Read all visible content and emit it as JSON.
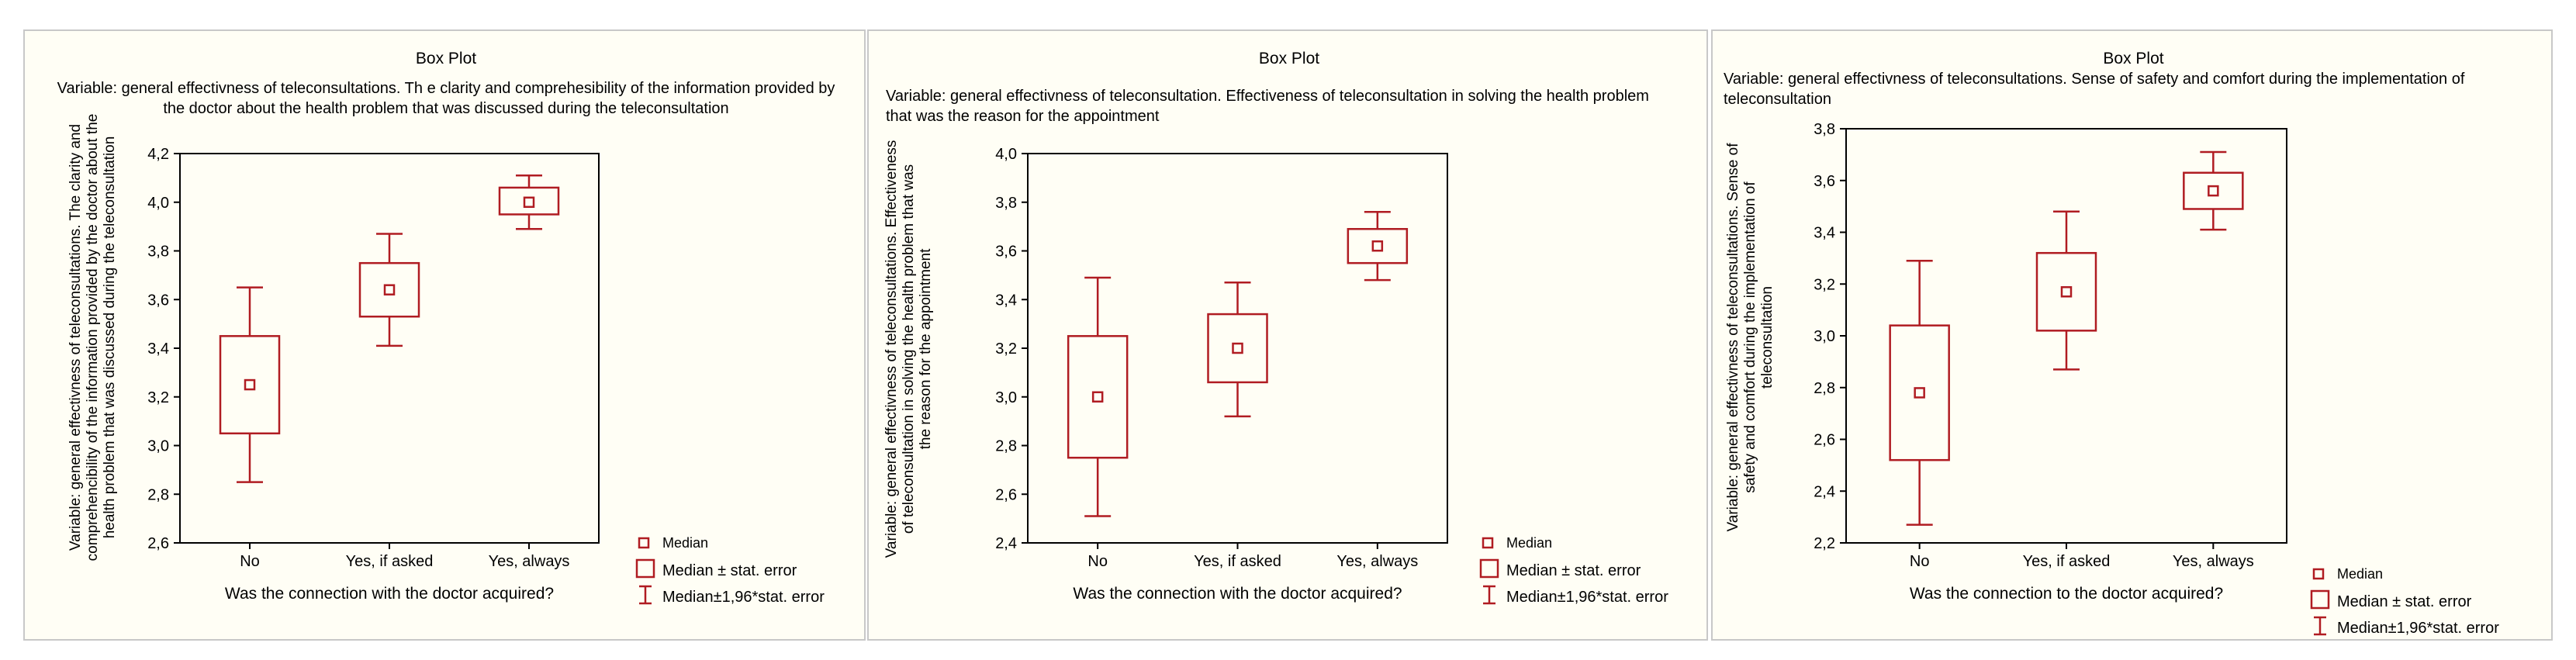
{
  "chart_data": [
    {
      "type": "boxplot",
      "title": "Box Plot",
      "subtitle": [
        "Variable: general effectivness of teleconsultations. Th e clarity and comprehesibility of the information provided by",
        "the doctor about the health problem that was discussed during the teleconsultation"
      ],
      "subtitle_align": "center",
      "xlabel": "Was the connection with the doctor acquired?",
      "ylabel": [
        "Variable: general effectivness of teleconsultations. The clarity and",
        "comprehencibility of the information provided by the doctor about the",
        "health problem that was discussed during the teleconsultation"
      ],
      "categories": [
        "No",
        "Yes, if asked",
        "Yes, always"
      ],
      "median": [
        3.25,
        3.64,
        4.0
      ],
      "box_low": [
        3.05,
        3.53,
        3.95
      ],
      "box_high": [
        3.45,
        3.75,
        4.06
      ],
      "whisker_low": [
        2.85,
        3.41,
        3.89
      ],
      "whisker_high": [
        3.65,
        3.87,
        4.11
      ],
      "ylim": [
        2.6,
        4.2
      ],
      "yticks": [
        "2,6",
        "2,8",
        "3,0",
        "3,2",
        "3,4",
        "3,6",
        "3,8",
        "4,0",
        "4,2"
      ],
      "legend": [
        "Median",
        "Median ± stat. error",
        "Median±1,96*stat. error"
      ],
      "legend_position": "bottom-right",
      "grid": false
    },
    {
      "type": "boxplot",
      "title": "Box Plot",
      "subtitle": [
        "Variable: general effectivness of teleconsultation. Effectiveness of teleconsultation in solving the health problem",
        "that was the reason for the appointment"
      ],
      "subtitle_align": "left",
      "xlabel": "Was the connection with the doctor acquired?",
      "ylabel": [
        "Variable: general effectivness of teleconsultations. Effectiveness",
        "of teleconsultation in solving the health problem that was",
        "the reason for the appointment"
      ],
      "categories": [
        "No",
        "Yes, if asked",
        "Yes, always"
      ],
      "median": [
        3.0,
        3.2,
        3.62
      ],
      "box_low": [
        2.75,
        3.06,
        3.55
      ],
      "box_high": [
        3.25,
        3.34,
        3.69
      ],
      "whisker_low": [
        2.51,
        2.92,
        3.48
      ],
      "whisker_high": [
        3.49,
        3.47,
        3.76
      ],
      "ylim": [
        2.4,
        4.0
      ],
      "yticks": [
        "2,4",
        "2,6",
        "2,8",
        "3,0",
        "3,2",
        "3,4",
        "3,6",
        "3,8",
        "4,0"
      ],
      "legend": [
        "Median",
        "Median ± stat. error",
        "Median±1,96*stat. error"
      ],
      "legend_position": "bottom-right",
      "grid": false
    },
    {
      "type": "boxplot",
      "title": "Box Plot",
      "subtitle": [
        "Variable: general effectivness of teleconsultations. Sense of safety and comfort during the implementation of",
        "teleconsultation"
      ],
      "subtitle_align": "left",
      "xlabel": "Was the connection to the doctor acquired?",
      "ylabel": [
        "Variable: general effectivness of teleconsultations. Sense of",
        "safety and comfort during the implementation of",
        "teleconsultation"
      ],
      "categories": [
        "No",
        "Yes, if asked",
        "Yes, always"
      ],
      "median": [
        2.78,
        3.17,
        3.56
      ],
      "box_low": [
        2.52,
        3.02,
        3.49
      ],
      "box_high": [
        3.04,
        3.32,
        3.63
      ],
      "whisker_low": [
        2.27,
        2.87,
        3.41
      ],
      "whisker_high": [
        3.29,
        3.48,
        3.71
      ],
      "ylim": [
        2.2,
        3.8
      ],
      "yticks": [
        "2,2",
        "2,4",
        "2,6",
        "2,8",
        "3,0",
        "3,2",
        "3,4",
        "3,6",
        "3,8"
      ],
      "legend": [
        "Median",
        "Median ± stat. error",
        "Median±1,96*stat. error"
      ],
      "legend_position": "bottom-right",
      "grid": false
    }
  ],
  "colors": {
    "series": "#b01c22",
    "panel_background": "#fffef5",
    "axis": "#000000"
  }
}
